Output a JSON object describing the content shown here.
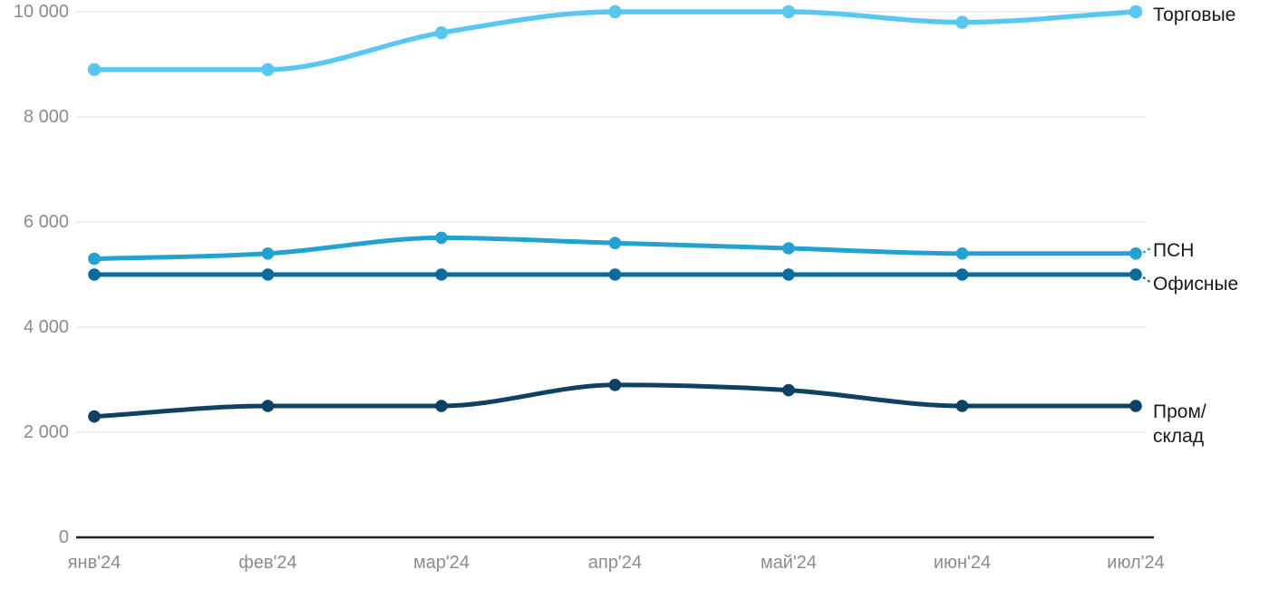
{
  "chart_data": {
    "type": "line",
    "title": "",
    "xlabel": "",
    "ylabel": "",
    "categories": [
      "янв'24",
      "фев'24",
      "мар'24",
      "апр'24",
      "май'24",
      "июн'24",
      "июл'24"
    ],
    "series": [
      {
        "name": "Торговые",
        "values": [
          8900,
          8900,
          9600,
          10000,
          10000,
          9800,
          10000
        ],
        "color": "#58C8F2",
        "label_lines": [
          "Торговые"
        ]
      },
      {
        "name": "ПСН",
        "values": [
          5300,
          5400,
          5700,
          5600,
          5500,
          5400,
          5400
        ],
        "color": "#22A2D1",
        "label_lines": [
          "ПСН"
        ]
      },
      {
        "name": "Офисные",
        "values": [
          5000,
          5000,
          5000,
          5000,
          5000,
          5000,
          5000
        ],
        "color": "#0B6B9B",
        "label_lines": [
          "Офисные"
        ]
      },
      {
        "name": "Пром/склад",
        "values": [
          2300,
          2500,
          2500,
          2900,
          2800,
          2500,
          2500
        ],
        "color": "#0E4163",
        "label_lines": [
          "Пром/",
          "склад"
        ]
      }
    ],
    "ylim": [
      0,
      10000
    ],
    "yticks": [
      0,
      2000,
      4000,
      6000,
      8000,
      10000
    ],
    "ytick_labels": [
      "0",
      "2 000",
      "4 000",
      "6 000",
      "8 000",
      "10 000"
    ],
    "grid": "horizontal",
    "legend_position": "labels-at-right-edge-of-lines"
  },
  "styles": {
    "background": "#FFFFFF",
    "grid_color": "#E7E7E7",
    "axis_color": "#1F1F1F",
    "tick_label_color": "#8C8C8C",
    "series_label_color": "#1A1A1A"
  }
}
